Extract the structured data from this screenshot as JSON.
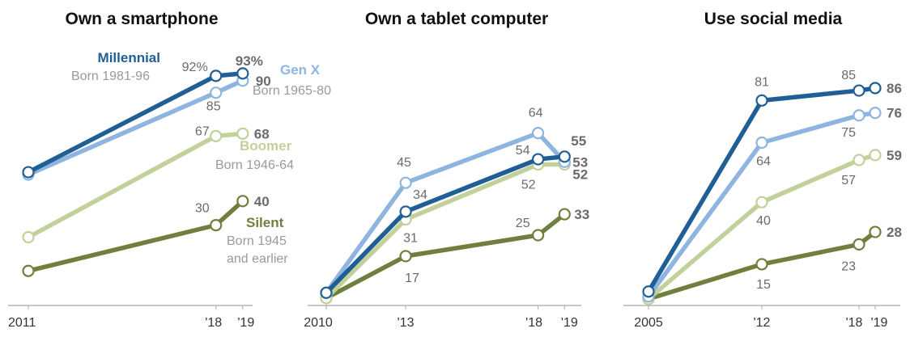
{
  "chart_data": [
    {
      "type": "line",
      "title": "Own a smartphone",
      "x": [
        2011,
        2018,
        2019
      ],
      "tick_labels": [
        "2011",
        "'18",
        "'19"
      ],
      "ylim": [
        0,
        100
      ],
      "series": [
        {
          "name": "Millennial",
          "subtitle": "Born 1981-96",
          "color": "#1f5f96",
          "values": [
            52,
            92,
            93
          ],
          "labels": [
            "",
            "92%",
            "93%"
          ]
        },
        {
          "name": "Gen X",
          "subtitle": "Born 1965-80",
          "color": "#8db5e0",
          "values": [
            51,
            85,
            90
          ],
          "labels": [
            "",
            "85",
            "90"
          ]
        },
        {
          "name": "Boomer",
          "subtitle": "Born 1946-64",
          "color": "#c2d19a",
          "values": [
            25,
            67,
            68
          ],
          "labels": [
            "",
            "67",
            "68"
          ]
        },
        {
          "name": "Silent",
          "subtitle": "Born 1945\nand earlier",
          "color": "#707f3e",
          "values": [
            11,
            30,
            40
          ],
          "labels": [
            "",
            "30",
            "40"
          ]
        }
      ]
    },
    {
      "type": "line",
      "title": "Own a tablet computer",
      "x": [
        2010,
        2013,
        2018,
        2019
      ],
      "tick_labels": [
        "2010",
        "'13",
        "'18",
        "'19"
      ],
      "ylim": [
        0,
        100
      ],
      "series": [
        {
          "name": "Millennial",
          "color": "#1f5f96",
          "values": [
            3,
            34,
            54,
            55
          ],
          "labels": [
            "",
            "34",
            "54",
            "55"
          ]
        },
        {
          "name": "Gen X",
          "color": "#8db5e0",
          "values": [
            3,
            45,
            64,
            53
          ],
          "labels": [
            "",
            "45",
            "64",
            "53"
          ]
        },
        {
          "name": "Boomer",
          "color": "#c2d19a",
          "values": [
            1,
            31,
            52,
            52
          ],
          "labels": [
            "",
            "31",
            "52",
            "52"
          ]
        },
        {
          "name": "Silent",
          "color": "#707f3e",
          "values": [
            1,
            17,
            25,
            33
          ],
          "labels": [
            "",
            "17",
            "25",
            "33"
          ]
        }
      ]
    },
    {
      "type": "line",
      "title": "Use social media",
      "x": [
        2005,
        2012,
        2018,
        2019
      ],
      "tick_labels": [
        "2005",
        "'12",
        "'18",
        "'19"
      ],
      "ylim": [
        0,
        100
      ],
      "series": [
        {
          "name": "Millennial",
          "color": "#1f5f96",
          "values": [
            4,
            81,
            85,
            86
          ],
          "labels": [
            "",
            "81",
            "85",
            "86"
          ]
        },
        {
          "name": "Gen X",
          "color": "#8db5e0",
          "values": [
            2,
            64,
            75,
            76
          ],
          "labels": [
            "",
            "64",
            "75",
            "76"
          ]
        },
        {
          "name": "Boomer",
          "color": "#c2d19a",
          "values": [
            1,
            40,
            57,
            59
          ],
          "labels": [
            "",
            "40",
            "57",
            "59"
          ]
        },
        {
          "name": "Silent",
          "color": "#707f3e",
          "values": [
            1,
            15,
            23,
            28
          ],
          "labels": [
            "",
            "15",
            "23",
            "28"
          ]
        }
      ]
    }
  ]
}
